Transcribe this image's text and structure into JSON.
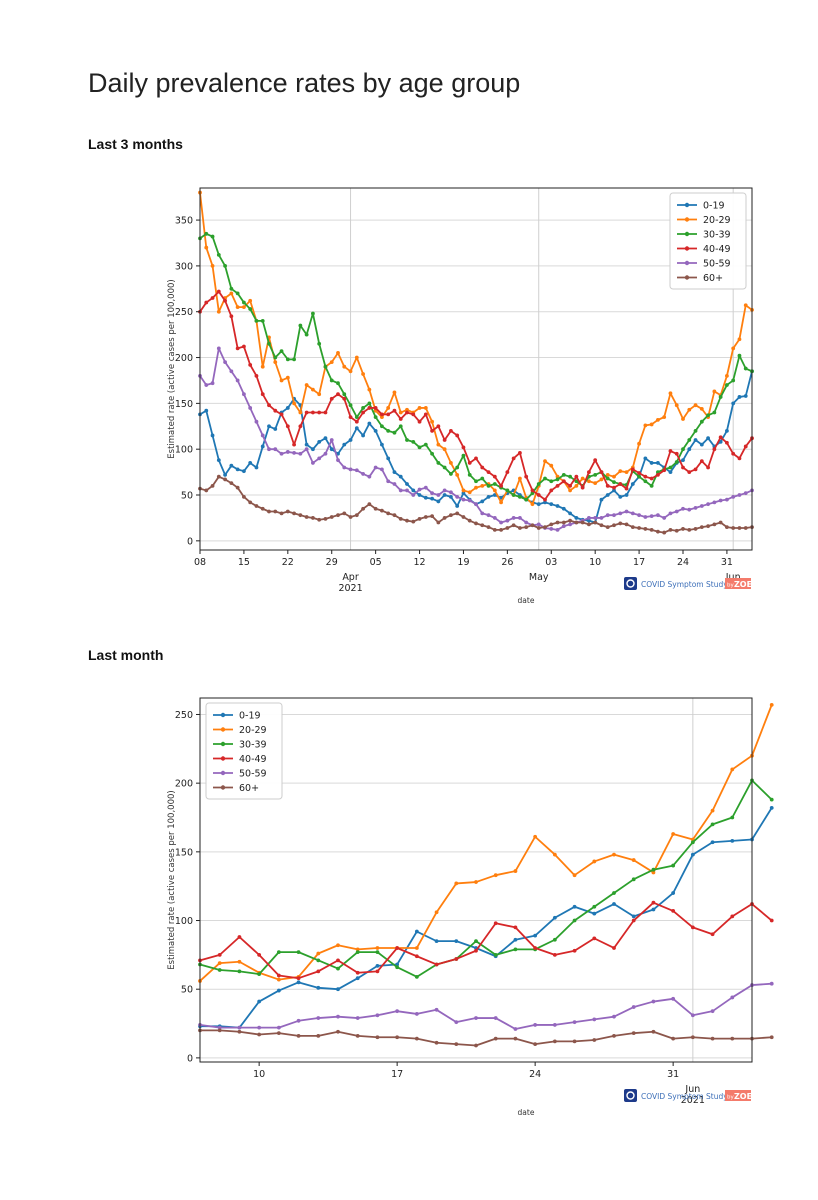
{
  "page": {
    "title": "Daily prevalence rates by age group",
    "sections": [
      "Last 3 months",
      "Last month"
    ]
  },
  "colors": {
    "0-19": "#1f77b4",
    "20-29": "#ff7f0e",
    "30-39": "#2ca02c",
    "40-49": "#d62728",
    "50-59": "#9467bd",
    "60+": "#8c564b"
  },
  "logo": {
    "text": "COVID Symptom Study",
    "by": "by",
    "brand": "ZOE"
  },
  "chart_data": [
    {
      "type": "line",
      "xlabel": "date",
      "ylabel": "Estimated rate (active cases per 100,000)",
      "x_start": "2021-03-08",
      "ylim": [
        -10,
        385
      ],
      "xlim": [
        0,
        88
      ],
      "yticks": [
        0,
        50,
        100,
        150,
        200,
        250,
        300,
        350
      ],
      "xticks": [
        {
          "d": 0,
          "label": "08"
        },
        {
          "d": 7,
          "label": "15"
        },
        {
          "d": 14,
          "label": "22"
        },
        {
          "d": 21,
          "label": "29"
        },
        {
          "d": 28,
          "label": "05"
        },
        {
          "d": 35,
          "label": "12"
        },
        {
          "d": 42,
          "label": "19"
        },
        {
          "d": 49,
          "label": "26"
        },
        {
          "d": 56,
          "label": "03"
        },
        {
          "d": 63,
          "label": "10"
        },
        {
          "d": 70,
          "label": "17"
        },
        {
          "d": 77,
          "label": "24"
        },
        {
          "d": 84,
          "label": "31"
        }
      ],
      "month_labels": [
        {
          "d": 24,
          "label": "Apr"
        },
        {
          "d": 24,
          "label": "2021",
          "row": 2
        },
        {
          "d": 54,
          "label": "May"
        },
        {
          "d": 85,
          "label": "Jun"
        }
      ],
      "vlines": [
        24,
        54,
        85
      ],
      "grid": true,
      "legend": "top-right",
      "series": [
        {
          "name": "0-19",
          "values": [
            138,
            142,
            115,
            88,
            72,
            82,
            78,
            76,
            85,
            80,
            103,
            125,
            122,
            140,
            145,
            155,
            148,
            105,
            100,
            108,
            112,
            100,
            95,
            105,
            110,
            123,
            115,
            128,
            120,
            105,
            90,
            75,
            70,
            62,
            55,
            50,
            47,
            46,
            43,
            50,
            48,
            38,
            52,
            45,
            40,
            43,
            48,
            50,
            47,
            52,
            55,
            50,
            45,
            42,
            40,
            42,
            40,
            38,
            35,
            30,
            25,
            23,
            22,
            20,
            45,
            50,
            55,
            48,
            50,
            62,
            70,
            90,
            85,
            85,
            80,
            75,
            85,
            88,
            100,
            110,
            105,
            112,
            103,
            108,
            120,
            150,
            157,
            158,
            185
          ]
        },
        {
          "name": "20-29",
          "values": [
            380,
            320,
            300,
            250,
            265,
            270,
            255,
            255,
            262,
            240,
            190,
            222,
            195,
            175,
            178,
            150,
            140,
            170,
            165,
            160,
            190,
            195,
            205,
            190,
            185,
            200,
            182,
            165,
            142,
            135,
            145,
            162,
            140,
            143,
            140,
            145,
            145,
            130,
            105,
            100,
            85,
            72,
            55,
            53,
            58,
            60,
            62,
            55,
            42,
            55,
            50,
            68,
            47,
            40,
            60,
            87,
            82,
            70,
            65,
            55,
            60,
            68,
            65,
            63,
            67,
            72,
            70,
            76,
            75,
            80,
            106,
            126,
            127,
            132,
            135,
            161,
            148,
            133,
            143,
            148,
            144,
            135,
            163,
            159,
            180,
            210,
            220,
            257,
            252
          ]
        },
        {
          "name": "30-39",
          "values": [
            330,
            335,
            332,
            312,
            300,
            275,
            270,
            260,
            253,
            240,
            240,
            215,
            200,
            207,
            198,
            198,
            235,
            225,
            248,
            215,
            190,
            175,
            172,
            160,
            148,
            135,
            145,
            150,
            135,
            125,
            120,
            118,
            125,
            110,
            108,
            102,
            105,
            95,
            85,
            80,
            73,
            80,
            93,
            72,
            65,
            68,
            60,
            62,
            58,
            55,
            50,
            48,
            45,
            52,
            62,
            68,
            65,
            67,
            72,
            70,
            65,
            60,
            70,
            72,
            75,
            68,
            64,
            62,
            61,
            76,
            70,
            65,
            60,
            75,
            78,
            80,
            86,
            100,
            110,
            120,
            130,
            137,
            140,
            157,
            170,
            175,
            202,
            188,
            185
          ]
        },
        {
          "name": "40-49",
          "values": [
            250,
            260,
            265,
            272,
            262,
            245,
            210,
            212,
            192,
            180,
            160,
            148,
            142,
            138,
            125,
            105,
            125,
            140,
            140,
            140,
            140,
            155,
            160,
            155,
            135,
            130,
            140,
            145,
            145,
            138,
            138,
            142,
            133,
            140,
            138,
            130,
            138,
            120,
            125,
            110,
            120,
            115,
            102,
            85,
            90,
            80,
            75,
            70,
            60,
            75,
            90,
            96,
            70,
            55,
            50,
            45,
            55,
            60,
            65,
            60,
            70,
            58,
            75,
            88,
            75,
            60,
            58,
            62,
            57,
            78,
            74,
            70,
            68,
            72,
            77,
            98,
            95,
            80,
            75,
            78,
            87,
            80,
            100,
            113,
            107,
            95,
            90,
            103,
            112
          ]
        },
        {
          "name": "50-59",
          "values": [
            180,
            170,
            172,
            210,
            195,
            185,
            175,
            160,
            145,
            130,
            115,
            100,
            100,
            95,
            97,
            96,
            95,
            100,
            85,
            90,
            95,
            110,
            88,
            80,
            78,
            77,
            73,
            70,
            80,
            78,
            65,
            62,
            55,
            55,
            50,
            56,
            58,
            52,
            50,
            55,
            53,
            48,
            45,
            44,
            40,
            30,
            28,
            25,
            20,
            22,
            25,
            25,
            20,
            17,
            18,
            14,
            13,
            12,
            16,
            18,
            20,
            22,
            25,
            25,
            25,
            28,
            28,
            30,
            32,
            30,
            28,
            26,
            27,
            28,
            25,
            30,
            32,
            35,
            34,
            36,
            38,
            40,
            42,
            44,
            45,
            48,
            50,
            52,
            55
          ]
        },
        {
          "name": "60+",
          "values": [
            57,
            55,
            60,
            70,
            67,
            63,
            58,
            48,
            42,
            38,
            35,
            32,
            32,
            30,
            32,
            30,
            28,
            26,
            25,
            23,
            24,
            26,
            28,
            30,
            26,
            28,
            35,
            40,
            35,
            33,
            30,
            28,
            24,
            22,
            21,
            24,
            26,
            27,
            20,
            25,
            28,
            30,
            26,
            22,
            19,
            17,
            15,
            12,
            12,
            14,
            17,
            14,
            15,
            17,
            14,
            15,
            18,
            20,
            20,
            22,
            20,
            20,
            18,
            20,
            17,
            15,
            17,
            19,
            18,
            15,
            14,
            13,
            12,
            10,
            9,
            12,
            11,
            13,
            12,
            13,
            15,
            16,
            18,
            20,
            15,
            14,
            14,
            14,
            15
          ]
        }
      ]
    },
    {
      "type": "line",
      "xlabel": "date",
      "ylabel": "Estimated rate (active cases per 100,000)",
      "x_start": "2021-05-07",
      "ylim": [
        -3,
        262
      ],
      "xlim": [
        0,
        28
      ],
      "yticks": [
        0,
        50,
        100,
        150,
        200,
        250
      ],
      "xticks": [
        {
          "d": 3,
          "label": "10"
        },
        {
          "d": 10,
          "label": "17"
        },
        {
          "d": 17,
          "label": "24"
        },
        {
          "d": 24,
          "label": "31"
        }
      ],
      "month_labels": [
        {
          "d": 25,
          "label": "Jun"
        },
        {
          "d": 25,
          "label": "2021",
          "row": 2
        }
      ],
      "vlines": [
        25
      ],
      "grid": true,
      "legend": "top-left",
      "series": [
        {
          "name": "0-19",
          "values": [
            23,
            23,
            22,
            41,
            49,
            55,
            51,
            50,
            58,
            67,
            68,
            92,
            85,
            85,
            80,
            74,
            86,
            89,
            102,
            110,
            105,
            112,
            103,
            108,
            120,
            148,
            157,
            158,
            159,
            182
          ]
        },
        {
          "name": "20-29",
          "values": [
            56,
            69,
            70,
            62,
            57,
            59,
            76,
            82,
            79,
            80,
            80,
            80,
            106,
            127,
            128,
            133,
            136,
            161,
            148,
            133,
            143,
            148,
            144,
            135,
            163,
            159,
            180,
            210,
            220,
            257
          ]
        },
        {
          "name": "30-39",
          "values": [
            68,
            64,
            63,
            61,
            77,
            77,
            71,
            65,
            77,
            77,
            66,
            59,
            68,
            72,
            85,
            75,
            79,
            79,
            86,
            100,
            110,
            120,
            130,
            137,
            140,
            157,
            170,
            175,
            202,
            188
          ]
        },
        {
          "name": "40-49",
          "values": [
            71,
            75,
            88,
            75,
            60,
            58,
            63,
            71,
            62,
            63,
            80,
            74,
            68,
            72,
            78,
            98,
            95,
            80,
            75,
            78,
            87,
            80,
            100,
            113,
            107,
            95,
            90,
            103,
            112,
            100
          ]
        },
        {
          "name": "50-59",
          "values": [
            24,
            22,
            22,
            22,
            22,
            27,
            29,
            30,
            29,
            31,
            34,
            32,
            35,
            26,
            29,
            29,
            21,
            24,
            24,
            26,
            28,
            30,
            37,
            41,
            43,
            31,
            34,
            44,
            53,
            54
          ]
        },
        {
          "name": "60+",
          "values": [
            20,
            20,
            19,
            17,
            18,
            16,
            16,
            19,
            16,
            15,
            15,
            14,
            11,
            10,
            9,
            14,
            14,
            10,
            12,
            12,
            13,
            16,
            18,
            19,
            14,
            15,
            14,
            14,
            14,
            15
          ]
        }
      ]
    }
  ]
}
